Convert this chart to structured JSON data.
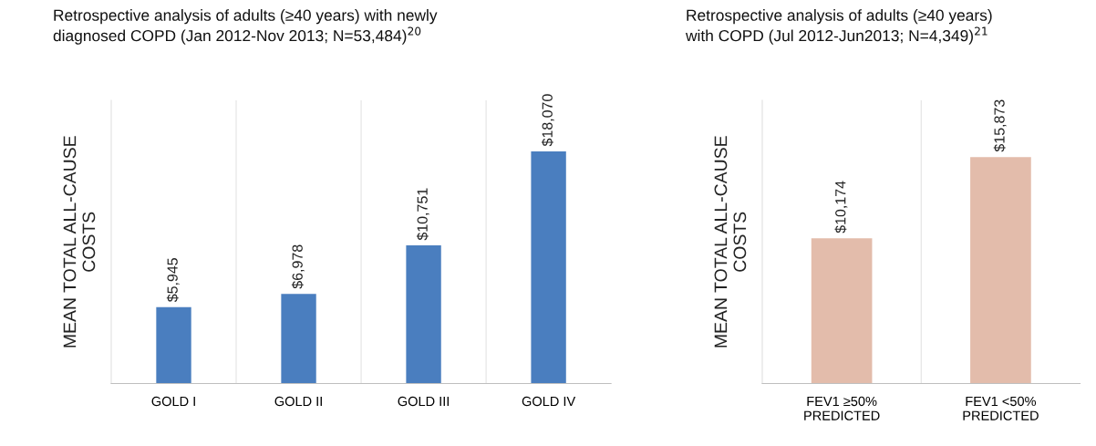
{
  "chart_data": [
    {
      "type": "bar",
      "title": "Retrospective analysis of adults (≥40 years) with newly\ndiagnosed COPD (Jan 2012-Nov 2013; N=53,484)$^{20}$",
      "ylabel": "MEAN TOTAL ALL-CAUSE\nCOSTS",
      "categories": [
        "GOLD I",
        "GOLD II",
        "GOLD III",
        "GOLD IV"
      ],
      "series": [
        {
          "color": "#4a7ebf",
          "values": [
            5945,
            6978,
            10751,
            18070
          ],
          "value_labels": [
            "$5,945",
            "$6,978",
            "$10,751",
            "$18,070"
          ]
        }
      ],
      "grid": "x",
      "legend": false
    },
    {
      "type": "bar",
      "title": "Retrospective analysis of adults (≥40 years)\nwith COPD (Jul 2012-Jun2013; N=4,349)$^{21}$",
      "ylabel": "MEAN TOTAL ALL-CAUSE\nCOSTS",
      "categories": [
        "FEV1 ≥50%\nPREDICTED",
        "FEV1 <50%\nPREDICTED"
      ],
      "series": [
        {
          "color": "#e3bcab",
          "values": [
            10174,
            15873
          ],
          "value_labels": [
            "$10,174",
            "$15,873"
          ]
        }
      ],
      "grid": "x",
      "legend": false
    }
  ]
}
